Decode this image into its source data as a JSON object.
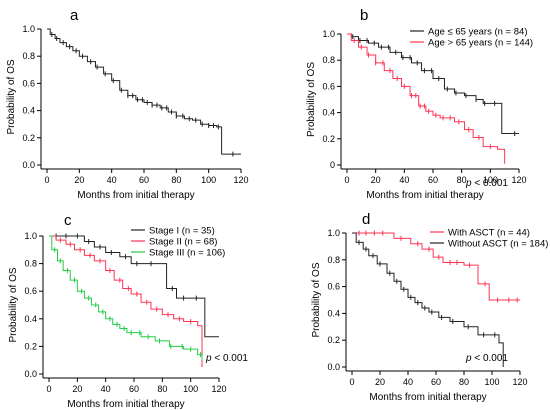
{
  "chart_data": [
    {
      "id": "a",
      "type": "line",
      "panel_label": "a",
      "xlabel": "Months from initial therapy",
      "ylabel": "Probability of OS",
      "xlim": [
        0,
        120
      ],
      "ylim": [
        0,
        1
      ],
      "xticks": [
        "0",
        "20",
        "40",
        "60",
        "80",
        "100",
        "120"
      ],
      "yticks": [
        "0.0",
        "0.2",
        "0.4",
        "0.6",
        "0.8",
        "1.0"
      ],
      "legend": null,
      "p_value": null,
      "series": [
        {
          "color": "#222222",
          "points": [
            [
              0,
              1.0
            ],
            [
              2,
              0.96
            ],
            [
              5,
              0.93
            ],
            [
              8,
              0.9
            ],
            [
              12,
              0.87
            ],
            [
              16,
              0.84
            ],
            [
              20,
              0.8
            ],
            [
              25,
              0.76
            ],
            [
              30,
              0.72
            ],
            [
              35,
              0.67
            ],
            [
              40,
              0.62
            ],
            [
              45,
              0.55
            ],
            [
              50,
              0.51
            ],
            [
              55,
              0.48
            ],
            [
              60,
              0.46
            ],
            [
              65,
              0.44
            ],
            [
              70,
              0.42
            ],
            [
              75,
              0.39
            ],
            [
              80,
              0.36
            ],
            [
              85,
              0.34
            ],
            [
              90,
              0.33
            ],
            [
              95,
              0.3
            ],
            [
              100,
              0.29
            ],
            [
              105,
              0.28
            ],
            [
              108,
              0.08
            ],
            [
              120,
              0.08
            ]
          ],
          "censor_x": [
            3,
            6,
            10,
            14,
            18,
            22,
            27,
            31,
            36,
            41,
            46,
            50,
            53,
            56,
            59,
            62,
            65,
            68,
            71,
            74,
            77,
            80,
            84,
            88,
            92,
            96,
            100,
            103,
            106,
            115
          ]
        }
      ]
    },
    {
      "id": "b",
      "type": "line",
      "panel_label": "b",
      "xlabel": "Months from initial therapy",
      "ylabel": "Probability of OS",
      "xlim": [
        0,
        120
      ],
      "ylim": [
        0,
        1
      ],
      "xticks": [
        "0",
        "20",
        "40",
        "60",
        "80",
        "100",
        "120"
      ],
      "yticks": [
        "0",
        "0.2",
        "0.4",
        "0.6",
        "0.8",
        "1.0"
      ],
      "legend": [
        "Age ≤ 65 years (n = 84)",
        "Age > 65 years (n = 144)"
      ],
      "p_value": {
        "prefix": "p",
        "text": " < 0.001"
      },
      "series": [
        {
          "name": "Age ≤ 65 years (n = 84)",
          "color": "#222222",
          "points": [
            [
              0,
              1.0
            ],
            [
              3,
              0.98
            ],
            [
              8,
              0.95
            ],
            [
              15,
              0.93
            ],
            [
              22,
              0.9
            ],
            [
              30,
              0.86
            ],
            [
              38,
              0.82
            ],
            [
              45,
              0.78
            ],
            [
              52,
              0.72
            ],
            [
              60,
              0.66
            ],
            [
              68,
              0.58
            ],
            [
              75,
              0.55
            ],
            [
              82,
              0.53
            ],
            [
              90,
              0.5
            ],
            [
              95,
              0.47
            ],
            [
              100,
              0.47
            ],
            [
              108,
              0.24
            ],
            [
              120,
              0.24
            ]
          ],
          "censor_x": [
            4,
            9,
            14,
            19,
            24,
            29,
            34,
            39,
            44,
            49,
            54,
            59,
            64,
            70,
            76,
            83,
            90,
            96,
            103,
            117
          ]
        },
        {
          "name": "Age > 65 years (n = 144)",
          "color": "#ff3355",
          "points": [
            [
              0,
              1.0
            ],
            [
              3,
              0.95
            ],
            [
              8,
              0.9
            ],
            [
              14,
              0.84
            ],
            [
              20,
              0.78
            ],
            [
              26,
              0.72
            ],
            [
              32,
              0.66
            ],
            [
              38,
              0.6
            ],
            [
              44,
              0.53
            ],
            [
              50,
              0.45
            ],
            [
              55,
              0.41
            ],
            [
              60,
              0.38
            ],
            [
              65,
              0.36
            ],
            [
              75,
              0.33
            ],
            [
              82,
              0.27
            ],
            [
              88,
              0.21
            ],
            [
              95,
              0.14
            ],
            [
              105,
              0.12
            ],
            [
              110,
              0.01
            ]
          ],
          "censor_x": [
            5,
            10,
            15,
            20,
            25,
            30,
            35,
            40,
            45,
            48,
            51,
            54,
            57,
            62,
            67,
            72,
            78,
            85,
            92,
            100
          ]
        }
      ]
    },
    {
      "id": "c",
      "type": "line",
      "panel_label": "c",
      "xlabel": "Months from initial therapy",
      "ylabel": "Probability of OS",
      "xlim": [
        0,
        120
      ],
      "ylim": [
        0,
        1
      ],
      "xticks": [
        "0",
        "20",
        "40",
        "60",
        "80",
        "100",
        "120"
      ],
      "yticks": [
        "0.0",
        "0.2",
        "0.4",
        "0.6",
        "0.8",
        "1.0"
      ],
      "legend": [
        "Stage I   (n = 35)",
        "Stage II  (n = 68)",
        "Stage III (n = 106)"
      ],
      "p_value": {
        "prefix": "p",
        "text": " < 0.001"
      },
      "series": [
        {
          "name": "Stage I   (n = 35)",
          "color": "#222222",
          "points": [
            [
              0,
              1.0
            ],
            [
              20,
              1.0
            ],
            [
              25,
              0.96
            ],
            [
              32,
              0.92
            ],
            [
              40,
              0.88
            ],
            [
              50,
              0.85
            ],
            [
              58,
              0.8
            ],
            [
              80,
              0.8
            ],
            [
              83,
              0.62
            ],
            [
              90,
              0.55
            ],
            [
              100,
              0.55
            ],
            [
              110,
              0.27
            ],
            [
              120,
              0.27
            ]
          ],
          "censor_x": [
            5,
            12,
            20,
            28,
            36,
            44,
            54,
            62,
            72,
            87,
            95,
            104
          ]
        },
        {
          "name": "Stage II  (n = 68)",
          "color": "#ff3355",
          "points": [
            [
              0,
              1.0
            ],
            [
              5,
              0.97
            ],
            [
              12,
              0.94
            ],
            [
              18,
              0.9
            ],
            [
              25,
              0.86
            ],
            [
              32,
              0.82
            ],
            [
              40,
              0.75
            ],
            [
              46,
              0.68
            ],
            [
              52,
              0.62
            ],
            [
              58,
              0.58
            ],
            [
              65,
              0.52
            ],
            [
              72,
              0.47
            ],
            [
              80,
              0.43
            ],
            [
              88,
              0.4
            ],
            [
              95,
              0.38
            ],
            [
              105,
              0.35
            ],
            [
              108,
              0.05
            ]
          ],
          "censor_x": [
            8,
            15,
            22,
            29,
            36,
            43,
            50,
            56,
            62,
            69,
            76,
            84,
            92,
            100
          ]
        },
        {
          "name": "Stage III (n = 106)",
          "color": "#22cc44",
          "points": [
            [
              0,
              1.0
            ],
            [
              2,
              0.9
            ],
            [
              6,
              0.82
            ],
            [
              10,
              0.75
            ],
            [
              15,
              0.68
            ],
            [
              20,
              0.6
            ],
            [
              25,
              0.55
            ],
            [
              30,
              0.5
            ],
            [
              35,
              0.45
            ],
            [
              40,
              0.4
            ],
            [
              45,
              0.36
            ],
            [
              50,
              0.33
            ],
            [
              55,
              0.3
            ],
            [
              65,
              0.27
            ],
            [
              75,
              0.24
            ],
            [
              85,
              0.2
            ],
            [
              95,
              0.18
            ],
            [
              105,
              0.14
            ],
            [
              108,
              0.1
            ]
          ],
          "censor_x": [
            4,
            8,
            13,
            18,
            23,
            28,
            33,
            38,
            43,
            48,
            53,
            58,
            64,
            70,
            78,
            86,
            94,
            100,
            107
          ]
        }
      ]
    },
    {
      "id": "d",
      "type": "line",
      "panel_label": "d",
      "xlabel": "Months from initial therapy",
      "ylabel": "Probability of OS",
      "xlim": [
        0,
        120
      ],
      "ylim": [
        0,
        1
      ],
      "xticks": [
        "0",
        "20",
        "40",
        "60",
        "80",
        "100",
        "120"
      ],
      "yticks": [
        "0.0",
        "0.2",
        "0.4",
        "0.6",
        "0.8",
        "1.0"
      ],
      "legend": [
        "With ASCT (n = 44)",
        "Without ASCT (n = 184)"
      ],
      "p_value": {
        "prefix": "p",
        "text": " < 0.001"
      },
      "series": [
        {
          "name": "With ASCT (n = 44)",
          "color": "#ff3355",
          "points": [
            [
              0,
              1.0
            ],
            [
              25,
              1.0
            ],
            [
              30,
              0.96
            ],
            [
              42,
              0.92
            ],
            [
              50,
              0.88
            ],
            [
              58,
              0.82
            ],
            [
              65,
              0.78
            ],
            [
              80,
              0.76
            ],
            [
              90,
              0.62
            ],
            [
              98,
              0.5
            ],
            [
              120,
              0.5
            ]
          ],
          "censor_x": [
            5,
            10,
            16,
            22,
            35,
            47,
            55,
            62,
            70,
            75,
            84,
            95,
            104,
            112,
            118
          ]
        },
        {
          "name": "Without ASCT (n = 184)",
          "color": "#222222",
          "points": [
            [
              0,
              1.0
            ],
            [
              3,
              0.93
            ],
            [
              8,
              0.88
            ],
            [
              12,
              0.83
            ],
            [
              18,
              0.77
            ],
            [
              25,
              0.7
            ],
            [
              30,
              0.64
            ],
            [
              35,
              0.58
            ],
            [
              40,
              0.52
            ],
            [
              45,
              0.48
            ],
            [
              50,
              0.44
            ],
            [
              55,
              0.41
            ],
            [
              62,
              0.37
            ],
            [
              70,
              0.34
            ],
            [
              80,
              0.3
            ],
            [
              90,
              0.24
            ],
            [
              100,
              0.24
            ],
            [
              105,
              0.18
            ],
            [
              108,
              0.0
            ]
          ],
          "censor_x": [
            5,
            10,
            15,
            20,
            27,
            32,
            37,
            42,
            47,
            52,
            57,
            64,
            72,
            83,
            94,
            102
          ]
        }
      ]
    }
  ]
}
